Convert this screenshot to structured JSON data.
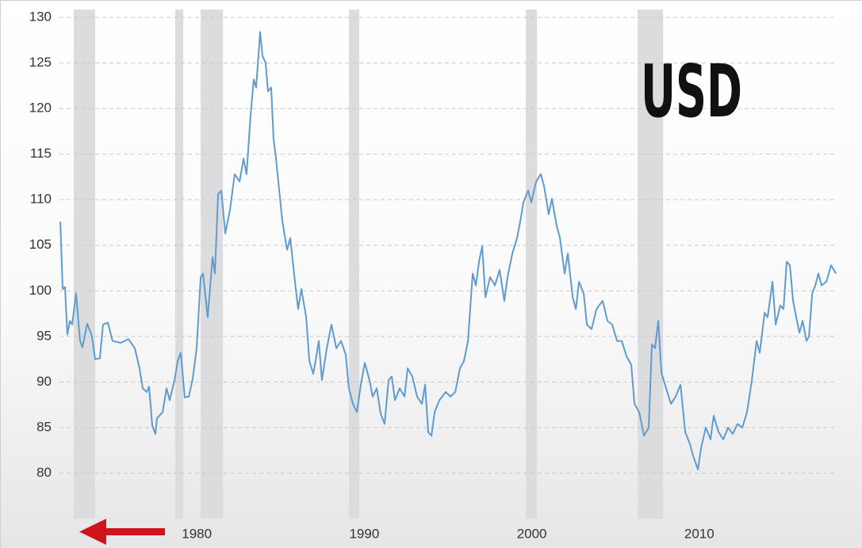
{
  "chart_data": {
    "type": "line",
    "annotation": "USD",
    "color": "#5f9bd1",
    "band_color": "#dcdcde",
    "grid": true,
    "xlim": [
      1971.8,
      2018.2
    ],
    "xticks": [
      1980,
      1990,
      2000,
      2010
    ],
    "ylim": [
      75,
      130
    ],
    "yticks": [
      80,
      85,
      90,
      95,
      100,
      105,
      110,
      115,
      120,
      125,
      130
    ],
    "bands": [
      [
        1972.65,
        1973.93
      ],
      [
        1978.71,
        1979.19
      ],
      [
        1980.23,
        1981.56
      ],
      [
        1989.08,
        1989.7
      ],
      [
        1999.64,
        2000.31
      ],
      [
        2006.32,
        2007.84
      ]
    ],
    "x": [
      1971.85,
      1971.99,
      1972.13,
      1972.27,
      1972.42,
      1972.56,
      1972.79,
      1973.03,
      1973.17,
      1973.46,
      1973.74,
      1973.93,
      1974.21,
      1974.4,
      1974.69,
      1974.97,
      1975.45,
      1975.92,
      1976.3,
      1976.58,
      1976.77,
      1977.01,
      1977.15,
      1977.34,
      1977.53,
      1977.62,
      1977.96,
      1978.19,
      1978.38,
      1978.67,
      1978.86,
      1979.04,
      1979.28,
      1979.52,
      1979.75,
      1979.99,
      1980.23,
      1980.37,
      1980.65,
      1980.94,
      1981.08,
      1981.27,
      1981.46,
      1981.7,
      1981.98,
      1982.26,
      1982.55,
      1982.79,
      1982.97,
      1983.21,
      1983.4,
      1983.54,
      1983.78,
      1983.92,
      1984.11,
      1984.25,
      1984.44,
      1984.58,
      1984.73,
      1984.92,
      1985.11,
      1985.39,
      1985.58,
      1985.86,
      1986.05,
      1986.24,
      1986.53,
      1986.72,
      1986.95,
      1987.09,
      1987.28,
      1987.47,
      1987.76,
      1988.04,
      1988.33,
      1988.61,
      1988.89,
      1989.08,
      1989.32,
      1989.56,
      1989.79,
      1990.03,
      1990.31,
      1990.5,
      1990.74,
      1990.98,
      1991.21,
      1991.45,
      1991.64,
      1991.83,
      1992.11,
      1992.4,
      1992.59,
      1992.87,
      1993.15,
      1993.44,
      1993.63,
      1993.82,
      1994.01,
      1994.2,
      1994.48,
      1994.86,
      1995.14,
      1995.43,
      1995.71,
      1995.95,
      1996.19,
      1996.47,
      1996.66,
      1996.85,
      1997.04,
      1997.23,
      1997.51,
      1997.8,
      1998.08,
      1998.36,
      1998.55,
      1998.84,
      1999.12,
      1999.31,
      1999.5,
      1999.78,
      1999.97,
      2000.26,
      2000.54,
      2000.73,
      2001.01,
      2001.2,
      2001.49,
      2001.68,
      2001.96,
      2002.15,
      2002.44,
      2002.63,
      2002.82,
      2003.1,
      2003.29,
      2003.57,
      2003.86,
      2004.23,
      2004.52,
      2004.8,
      2005.09,
      2005.37,
      2005.66,
      2005.94,
      2006.13,
      2006.41,
      2006.7,
      2006.98,
      2007.17,
      2007.36,
      2007.55,
      2007.74,
      2008.02,
      2008.31,
      2008.59,
      2008.88,
      2009.16,
      2009.44,
      2009.63,
      2009.92,
      2010.11,
      2010.39,
      2010.67,
      2010.86,
      2011.15,
      2011.43,
      2011.72,
      2012.0,
      2012.28,
      2012.57,
      2012.85,
      2013.14,
      2013.42,
      2013.61,
      2013.9,
      2014.08,
      2014.37,
      2014.56,
      2014.84,
      2015.03,
      2015.22,
      2015.41,
      2015.6,
      2015.79,
      2015.98,
      2016.17,
      2016.4,
      2016.55,
      2016.74,
      2016.93,
      2017.11,
      2017.3,
      2017.59,
      2017.87,
      2018.16
    ],
    "values": [
      107.6,
      100.2,
      100.4,
      95.2,
      96.7,
      96.3,
      99.7,
      94.5,
      93.8,
      96.4,
      95,
      92.5,
      92.6,
      96.3,
      96.5,
      94.5,
      94.3,
      94.7,
      93.7,
      91.5,
      89.3,
      88.9,
      89.5,
      85.2,
      84.3,
      86,
      86.7,
      89.3,
      88,
      90.2,
      92.3,
      93.2,
      88.3,
      88.4,
      90.3,
      93.7,
      101.5,
      101.9,
      97.1,
      103.7,
      101.9,
      110.6,
      111,
      106.3,
      108.9,
      112.8,
      112,
      114.5,
      112.8,
      119.3,
      123.2,
      122.3,
      128.4,
      125.8,
      125,
      121.9,
      122.3,
      116.7,
      114.5,
      111,
      107.6,
      104.5,
      105.8,
      101,
      98,
      100.2,
      97.1,
      92.3,
      90.9,
      92.3,
      94.5,
      90.2,
      93.7,
      96.3,
      93.7,
      94.5,
      93,
      89.3,
      87.6,
      86.7,
      89.7,
      92.1,
      90.2,
      88.4,
      89.3,
      86.5,
      85.4,
      90.2,
      90.6,
      88,
      89.3,
      88.4,
      91.5,
      90.6,
      88.4,
      87.6,
      89.7,
      84.5,
      84.1,
      86.7,
      88,
      88.9,
      88.4,
      88.9,
      91.5,
      92.3,
      94.5,
      101.9,
      100.6,
      103.2,
      104.9,
      99.3,
      101.5,
      100.6,
      102.3,
      98.9,
      101.5,
      104.1,
      105.8,
      107.6,
      109.7,
      111,
      109.7,
      112,
      112.8,
      111.5,
      108.4,
      110.1,
      107.1,
      105.8,
      101.9,
      104.1,
      99.3,
      98,
      101,
      99.7,
      96.3,
      95.8,
      98,
      98.9,
      96.7,
      96.3,
      94.5,
      94.5,
      92.8,
      91.9,
      87.6,
      86.7,
      84.1,
      85,
      94.1,
      93.7,
      96.7,
      91,
      89.3,
      87.6,
      88.4,
      89.7,
      84.5,
      83.2,
      81.9,
      80.4,
      82.8,
      85,
      83.7,
      86.3,
      84.5,
      83.7,
      85,
      84.3,
      85.4,
      85,
      86.7,
      90.2,
      94.5,
      93.2,
      97.6,
      97.1,
      101,
      96.3,
      98.4,
      98,
      103.2,
      102.8,
      98.9,
      97.1,
      95.4,
      96.7,
      94.5,
      95,
      99.7,
      100.6,
      101.9,
      100.6,
      101,
      102.8,
      101.9
    ]
  }
}
